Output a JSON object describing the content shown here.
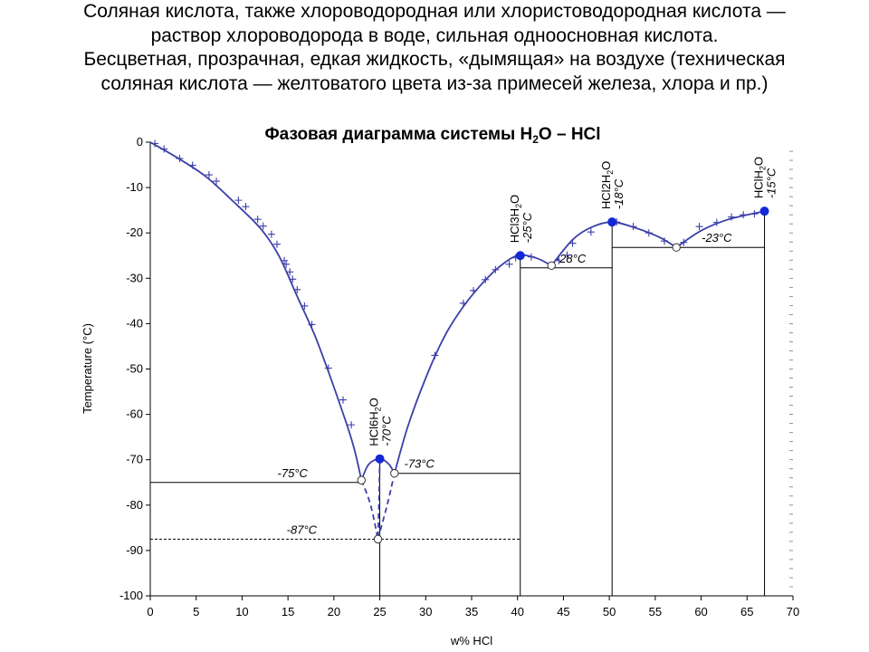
{
  "slide": {
    "paragraph_1": "Соляная кислота, также хлороводородная или хлористоводородная кислота — раствор хлороводорода в воде, сильная одноосновная кислота.",
    "paragraph_2": "Бесцветная, прозрачная, едкая жидкость, «дымящая» на воздухе (техническая соляная кислота — желтоватого цвета из-за примесей железа, хлора и пр.)"
  },
  "chart_data": {
    "type": "line",
    "title": {
      "prefix": "Фазовая диаграмма системы H",
      "sub": "2",
      "suffix": "O – HCl"
    },
    "xlabel": "w% HCl",
    "ylabel": "Temperature (°C)",
    "xlim": [
      0,
      70
    ],
    "ylim": [
      -100,
      0
    ],
    "x_ticks": [
      0,
      5,
      10,
      15,
      20,
      25,
      30,
      35,
      40,
      45,
      50,
      55,
      60,
      65,
      70
    ],
    "y_ticks": [
      0,
      -10,
      -20,
      -30,
      -40,
      -50,
      -60,
      -70,
      -80,
      -90,
      -100
    ],
    "grid": false,
    "series": [
      {
        "role": "ice-liquidus",
        "style": "solid",
        "points": [
          [
            0,
            0
          ],
          [
            3,
            -3.5
          ],
          [
            6,
            -7.5
          ],
          [
            9,
            -13
          ],
          [
            12,
            -19
          ],
          [
            14,
            -25
          ],
          [
            16,
            -34
          ],
          [
            18,
            -43
          ],
          [
            20,
            -54
          ],
          [
            22,
            -66
          ],
          [
            23,
            -74.5
          ]
        ]
      },
      {
        "role": "ice-liquidus-metastable",
        "style": "dashed",
        "points": [
          [
            23,
            -74.5
          ],
          [
            24,
            -80
          ],
          [
            24.8,
            -87.5
          ]
        ]
      },
      {
        "role": "hexahydrate-liquidus",
        "style": "solid",
        "points": [
          [
            23,
            -74.5
          ],
          [
            23.8,
            -71
          ],
          [
            25,
            -69.8
          ],
          [
            26,
            -71
          ],
          [
            26.6,
            -73
          ]
        ]
      },
      {
        "role": "hexahydrate-metastable",
        "style": "dashed",
        "points": [
          [
            25,
            -69.8
          ],
          [
            24.9,
            -80
          ],
          [
            24.8,
            -87.5
          ]
        ]
      },
      {
        "role": "trihydrate-metastable",
        "style": "dashed",
        "points": [
          [
            24.8,
            -87.5
          ],
          [
            25.8,
            -80
          ],
          [
            26.6,
            -73
          ]
        ]
      },
      {
        "role": "trihydrate-liquidus",
        "style": "solid",
        "points": [
          [
            26.6,
            -73
          ],
          [
            28,
            -63
          ],
          [
            30,
            -52
          ],
          [
            32,
            -43
          ],
          [
            34,
            -36.5
          ],
          [
            36,
            -31.5
          ],
          [
            38,
            -27.5
          ],
          [
            40,
            -25
          ],
          [
            42,
            -25.5
          ],
          [
            43.7,
            -27.2
          ]
        ]
      },
      {
        "role": "dihydrate-liquidus",
        "style": "solid",
        "points": [
          [
            43.7,
            -27.2
          ],
          [
            46,
            -21.5
          ],
          [
            48,
            -18.8
          ],
          [
            50.3,
            -17.6
          ],
          [
            53,
            -19
          ],
          [
            55.5,
            -21
          ],
          [
            57.3,
            -23.2
          ]
        ]
      },
      {
        "role": "monohydrate-liquidus",
        "style": "solid",
        "points": [
          [
            57.3,
            -23.2
          ],
          [
            60,
            -19.5
          ],
          [
            63,
            -17
          ],
          [
            66.9,
            -15.2
          ]
        ]
      }
    ],
    "data_points": [
      [
        0.5,
        -0.3
      ],
      [
        1.5,
        -1.5
      ],
      [
        3.2,
        -3.6
      ],
      [
        4.6,
        -5.1
      ],
      [
        6.4,
        -7.2
      ],
      [
        7.2,
        -8.6
      ],
      [
        9.6,
        -12.8
      ],
      [
        10.4,
        -14.2
      ],
      [
        11.7,
        -17.0
      ],
      [
        12.3,
        -18.5
      ],
      [
        13.2,
        -20.3
      ],
      [
        13.8,
        -22.5
      ],
      [
        14.6,
        -26.1
      ],
      [
        14.8,
        -26.9
      ],
      [
        15.2,
        -28.6
      ],
      [
        15.5,
        -30.2
      ],
      [
        16.0,
        -32.5
      ],
      [
        16.8,
        -36.1
      ],
      [
        17.6,
        -40.2
      ],
      [
        19.4,
        -49.8
      ],
      [
        21.0,
        -56.8
      ],
      [
        21.9,
        -62.3
      ],
      [
        31.0,
        -47.0
      ],
      [
        34.1,
        -35.5
      ],
      [
        35.2,
        -32.7
      ],
      [
        36.5,
        -30.3
      ],
      [
        37.6,
        -28.1
      ],
      [
        39.1,
        -26.9
      ],
      [
        39.8,
        -25.5
      ],
      [
        41.5,
        -25.3
      ],
      [
        44.5,
        -26.1
      ],
      [
        45.4,
        -24.9
      ],
      [
        46.0,
        -22.3
      ],
      [
        48.0,
        -19.8
      ],
      [
        50.8,
        -17.6
      ],
      [
        52.6,
        -18.6
      ],
      [
        54.3,
        -20.0
      ],
      [
        56.0,
        -21.8
      ],
      [
        58.1,
        -22.1
      ],
      [
        59.8,
        -18.6
      ],
      [
        61.7,
        -17.7
      ],
      [
        63.3,
        -16.5
      ],
      [
        64.6,
        -16.0
      ],
      [
        65.8,
        -15.8
      ]
    ],
    "invariant_lines": [
      {
        "label": "-75°C",
        "y": -75,
        "x_from": 0,
        "x_to": 23,
        "style": "solid",
        "label_x": 15.5
      },
      {
        "label": "-87°C",
        "y": -87.5,
        "x_from": 0,
        "x_to": 40.3,
        "style": "dashed",
        "label_x": 16.5
      },
      {
        "label": "-73°C",
        "y": -73,
        "x_from": 26.6,
        "x_to": 40.3,
        "style": "solid",
        "label_x": 29.3
      },
      {
        "label": "-28°C",
        "y": -27.7,
        "x_from": 40.3,
        "x_to": 50.3,
        "style": "solid",
        "label_x": 45.8
      },
      {
        "label": "-23°C",
        "y": -23.2,
        "x_from": 50.3,
        "x_to": 66.9,
        "style": "solid",
        "label_x": 61.7
      }
    ],
    "compound_lines": [
      {
        "x": 25,
        "y_top": -69.8
      },
      {
        "x": 40.3,
        "y_top": -25
      },
      {
        "x": 50.3,
        "y_top": -17.6
      },
      {
        "x": 66.9,
        "y_top": -15.2
      }
    ],
    "maxima": [
      {
        "x": 25,
        "y": -69.8,
        "formula": "HCl6H",
        "sub": "2",
        "suffix": "O",
        "temp": "-70°C"
      },
      {
        "x": 40.3,
        "y": -25,
        "formula": "HCl3H",
        "sub": "2",
        "suffix": "O",
        "temp": "-25°C"
      },
      {
        "x": 50.3,
        "y": -17.6,
        "formula": "HCl2H",
        "sub": "2",
        "suffix": "O",
        "temp": "-18°C"
      },
      {
        "x": 66.9,
        "y": -15.2,
        "formula": "HClH",
        "sub": "2",
        "suffix": "O",
        "temp": "-15°C"
      }
    ],
    "eutectics": [
      [
        23,
        -74.5
      ],
      [
        24.8,
        -87.5
      ],
      [
        26.6,
        -73
      ],
      [
        43.7,
        -27.2
      ],
      [
        57.3,
        -23.2
      ]
    ],
    "colors": {
      "curve": "#3b3fa8",
      "marker": "#1428d8",
      "axis": "#000000"
    }
  }
}
